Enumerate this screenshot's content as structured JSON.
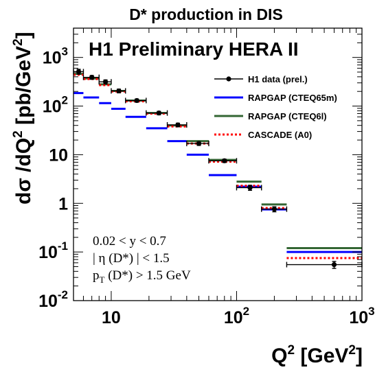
{
  "chart_data": {
    "type": "scatter",
    "title": "D* production in DIS",
    "banner": "H1 Preliminary HERA II",
    "xlabel": {
      "main": "Q",
      "sup": "2",
      "unit_open": " [GeV",
      "unit_sup": "2",
      "unit_close": "]"
    },
    "ylabel": {
      "main": "dσ /dQ",
      "sup": "2",
      "unit_open": " [pb/GeV",
      "unit_sup": "2",
      "unit_close": "]"
    },
    "xscale": "log",
    "yscale": "log",
    "xlim": [
      5,
      1000
    ],
    "ylim": [
      0.01,
      4000
    ],
    "grid": false,
    "legend_position": "top-right",
    "x_ticks": [
      {
        "value": 10,
        "base": "10",
        "exp": ""
      },
      {
        "value": 100,
        "base": "10",
        "exp": "2"
      },
      {
        "value": 1000,
        "base": "10",
        "exp": "3"
      }
    ],
    "y_ticks": [
      {
        "value": 0.01,
        "base": "10",
        "exp": "-2"
      },
      {
        "value": 0.1,
        "base": "10",
        "exp": "-1"
      },
      {
        "value": 1,
        "base": "1",
        "exp": ""
      },
      {
        "value": 10,
        "base": "10",
        "exp": ""
      },
      {
        "value": 100,
        "base": "10",
        "exp": "2"
      },
      {
        "value": 1000,
        "base": "10",
        "exp": "3"
      }
    ],
    "bins": [
      [
        5,
        6
      ],
      [
        6,
        8
      ],
      [
        8,
        10
      ],
      [
        10,
        13
      ],
      [
        13,
        19
      ],
      [
        19,
        28
      ],
      [
        28,
        40
      ],
      [
        40,
        60
      ],
      [
        60,
        100
      ],
      [
        100,
        158
      ],
      [
        158,
        251
      ],
      [
        251,
        1000
      ]
    ],
    "data_x": [
      5.5,
      7,
      9,
      11.5,
      16,
      24,
      34,
      50,
      80,
      128,
      200,
      600
    ],
    "series": [
      {
        "name": "H1 data (prel.)",
        "style": "points",
        "color": "#000000",
        "values": [
          510,
          390,
          315,
          205,
          130,
          72,
          41,
          17,
          7.5,
          2.1,
          0.76,
          0.055
        ],
        "errors": [
          60,
          35,
          30,
          18,
          10,
          6,
          3.5,
          1.5,
          0.6,
          0.25,
          0.09,
          0.009
        ]
      },
      {
        "name": "RAPGAP (CTEQ65m)",
        "style": "hist",
        "color": "#0000ff",
        "values": [
          185,
          150,
          115,
          88,
          60,
          35,
          19,
          10,
          3.8,
          2.2,
          0.75,
          0.1
        ]
      },
      {
        "name": "RAPGAP (CTEQ6l)",
        "style": "hist",
        "color": "#336633",
        "values": [
          460,
          370,
          280,
          205,
          130,
          72,
          40,
          19,
          7.8,
          2.8,
          0.95,
          0.12
        ]
      },
      {
        "name": "CASCADE (A0)",
        "style": "hist-dotted",
        "color": "#ff0000",
        "values": [
          440,
          360,
          270,
          200,
          125,
          70,
          38,
          17,
          7.2,
          2.3,
          0.8,
          0.075
        ]
      }
    ],
    "cuts": [
      {
        "text": "0.02 < y < 0.7",
        "sub": "",
        "rest": ""
      },
      {
        "text": "| η (D*) | < 1.5",
        "sub": "",
        "rest": ""
      },
      {
        "text": "p",
        "sub": "T",
        "rest": " (D*) > 1.5 GeV"
      }
    ]
  }
}
